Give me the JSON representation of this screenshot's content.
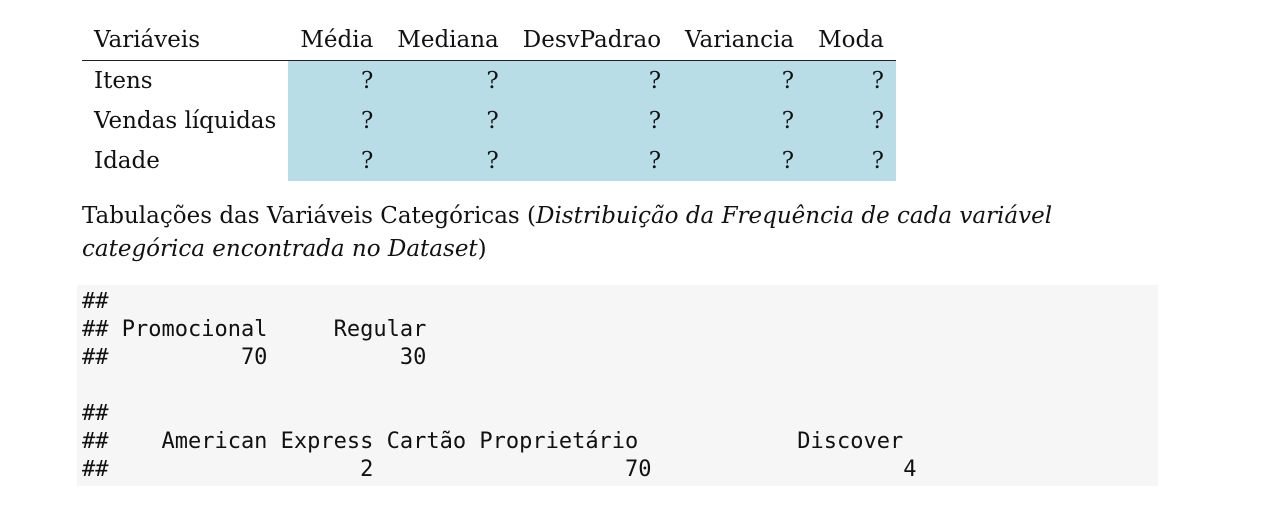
{
  "table": {
    "headers": [
      "Variáveis",
      "Média",
      "Mediana",
      "DesvPadrao",
      "Variancia",
      "Moda"
    ],
    "rows": [
      {
        "label": "Itens",
        "values": [
          "?",
          "?",
          "?",
          "?",
          "?"
        ]
      },
      {
        "label": "Vendas líquidas",
        "values": [
          "?",
          "?",
          "?",
          "?",
          "?"
        ]
      },
      {
        "label": "Idade",
        "values": [
          "?",
          "?",
          "?",
          "?",
          "?"
        ]
      }
    ]
  },
  "heading": {
    "prefix": "Tabulações das Variáveis Categóricas (",
    "italic": "Distribuição da Frequência de cada variável categórica encontrada no Dataset",
    "suffix": ")"
  },
  "code_output": [
    "##",
    "## Promocional     Regular",
    "##          70          30",
    "",
    "##",
    "##    American Express Cartão Proprietário            Discover",
    "##                   2                   70                   4"
  ]
}
